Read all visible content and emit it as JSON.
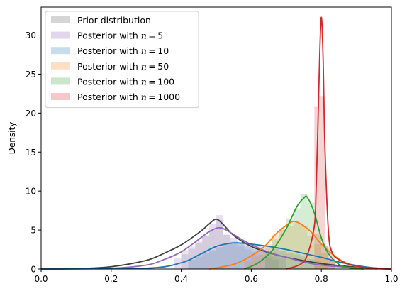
{
  "chart_data": {
    "type": "area",
    "title": "",
    "xlabel": "",
    "ylabel": "Density",
    "xlim": [
      0.0,
      1.0
    ],
    "ylim": [
      0,
      33.6
    ],
    "xticks": [
      "0.0",
      "0.2",
      "0.4",
      "0.6",
      "0.8",
      "1.0"
    ],
    "yticks": [
      "0",
      "5",
      "10",
      "15",
      "20",
      "25",
      "30"
    ],
    "grid": false,
    "legend_position": "upper-left",
    "series": [
      {
        "name": "Prior distribution",
        "color": "#404040",
        "alpha": 0.12,
        "bin_edges": [
          0.4,
          0.42,
          0.44,
          0.46,
          0.48,
          0.5,
          0.52,
          0.54,
          0.56,
          0.58,
          0.6,
          0.62,
          0.64,
          0.66,
          0.68
        ],
        "bin_heights": [
          2.4,
          2.9,
          3.6,
          4.3,
          5.0,
          6.3,
          4.4,
          3.4,
          3.0,
          2.5,
          2.2,
          1.8,
          1.5,
          1.2
        ],
        "curve_x": [
          0.0,
          0.1,
          0.2,
          0.3,
          0.35,
          0.4,
          0.43,
          0.46,
          0.48,
          0.5,
          0.52,
          0.55,
          0.6,
          0.65,
          0.7,
          0.8,
          0.9,
          1.0
        ],
        "curve_y": [
          0.0,
          0.05,
          0.3,
          1.1,
          2.0,
          3.1,
          4.0,
          5.0,
          5.8,
          6.4,
          5.7,
          4.3,
          2.9,
          2.1,
          1.5,
          0.7,
          0.25,
          0.05
        ]
      },
      {
        "name": "Posterior with $n = 5$",
        "color": "#9467bd",
        "alpha": 0.22,
        "bin_edges": [
          0.38,
          0.4,
          0.42,
          0.44,
          0.46,
          0.48,
          0.5,
          0.52,
          0.54,
          0.56,
          0.58,
          0.6,
          0.62,
          0.64,
          0.66,
          0.68,
          0.7
        ],
        "bin_heights": [
          1.4,
          1.9,
          2.6,
          3.3,
          4.3,
          5.8,
          6.9,
          4.4,
          4.0,
          3.3,
          2.9,
          2.6,
          2.3,
          2.0,
          1.7,
          1.4
        ],
        "curve_x": [
          0.0,
          0.2,
          0.3,
          0.35,
          0.4,
          0.45,
          0.48,
          0.51,
          0.54,
          0.58,
          0.62,
          0.66,
          0.7,
          0.75,
          0.8,
          0.9,
          1.0
        ],
        "curve_y": [
          0.0,
          0.1,
          0.5,
          1.2,
          2.2,
          3.8,
          4.8,
          5.3,
          4.7,
          3.6,
          2.7,
          2.0,
          1.5,
          0.9,
          0.5,
          0.15,
          0.0
        ]
      },
      {
        "name": "Posterior with $n = 10$",
        "color": "#1f77b4",
        "alpha": 0.2,
        "bin_edges": [
          0.42,
          0.44,
          0.46,
          0.48,
          0.5,
          0.52,
          0.54,
          0.56,
          0.58,
          0.6,
          0.62,
          0.64,
          0.66,
          0.68,
          0.7,
          0.72,
          0.74,
          0.76,
          0.78,
          0.8,
          0.82
        ],
        "bin_heights": [
          1.2,
          1.6,
          2.0,
          2.4,
          2.8,
          3.2,
          3.5,
          3.4,
          3.3,
          3.2,
          3.0,
          2.8,
          2.6,
          2.3,
          2.1,
          1.9,
          1.6,
          1.3,
          1.1,
          0.8
        ],
        "curve_x": [
          0.0,
          0.3,
          0.4,
          0.45,
          0.5,
          0.54,
          0.56,
          0.6,
          0.65,
          0.7,
          0.75,
          0.8,
          0.85,
          0.9,
          0.95,
          1.0
        ],
        "curve_y": [
          0.0,
          0.1,
          0.8,
          1.8,
          2.9,
          3.3,
          3.35,
          3.2,
          2.9,
          2.5,
          2.0,
          1.5,
          0.9,
          0.45,
          0.15,
          0.0
        ]
      },
      {
        "name": "Posterior with $n = 50$",
        "color": "#ff7f0e",
        "alpha": 0.2,
        "bin_edges": [
          0.58,
          0.6,
          0.62,
          0.64,
          0.66,
          0.68,
          0.7,
          0.72,
          0.74,
          0.76,
          0.78,
          0.8,
          0.82,
          0.84
        ],
        "bin_heights": [
          1.0,
          1.6,
          2.3,
          3.2,
          4.4,
          5.1,
          5.5,
          6.0,
          5.5,
          4.3,
          3.2,
          2.0,
          1.1
        ],
        "curve_x": [
          0.48,
          0.55,
          0.6,
          0.64,
          0.67,
          0.7,
          0.72,
          0.74,
          0.77,
          0.8,
          0.84,
          0.88,
          0.92,
          0.96
        ],
        "curve_y": [
          0.0,
          0.6,
          1.7,
          3.0,
          4.5,
          5.6,
          6.1,
          5.8,
          4.8,
          3.2,
          1.6,
          0.6,
          0.15,
          0.0
        ]
      },
      {
        "name": "Posterior with $n = 100$",
        "color": "#2ca02c",
        "alpha": 0.2,
        "bin_edges": [
          0.64,
          0.66,
          0.68,
          0.7,
          0.72,
          0.74,
          0.76,
          0.78,
          0.8,
          0.82,
          0.84
        ],
        "bin_heights": [
          2.0,
          3.8,
          5.0,
          6.5,
          7.8,
          9.6,
          8.5,
          4.5,
          3.0,
          1.0
        ],
        "curve_x": [
          0.58,
          0.62,
          0.66,
          0.7,
          0.73,
          0.75,
          0.76,
          0.78,
          0.8,
          0.82,
          0.85,
          0.88,
          0.92
        ],
        "curve_y": [
          0.0,
          0.8,
          2.4,
          5.2,
          8.0,
          9.1,
          9.2,
          7.2,
          4.0,
          2.0,
          0.6,
          0.15,
          0.0
        ]
      },
      {
        "name": "Posterior with $n = 1000$",
        "color": "#d62728",
        "alpha": 0.2,
        "bin_edges": [
          0.78,
          0.79,
          0.8,
          0.81,
          0.82,
          0.83,
          0.84
        ],
        "bin_heights": [
          20.8,
          22.2,
          22.2,
          3.0,
          2.8,
          1.9
        ],
        "curve_x": [
          0.7,
          0.74,
          0.76,
          0.78,
          0.785,
          0.79,
          0.795,
          0.8,
          0.805,
          0.81,
          0.82,
          0.83,
          0.85,
          0.88,
          0.92,
          0.96,
          1.0
        ],
        "curve_y": [
          0.0,
          0.6,
          1.8,
          5.5,
          10.0,
          18.0,
          27.0,
          32.3,
          27.0,
          16.0,
          5.0,
          2.2,
          1.2,
          0.6,
          0.2,
          0.05,
          0.0
        ]
      }
    ]
  }
}
